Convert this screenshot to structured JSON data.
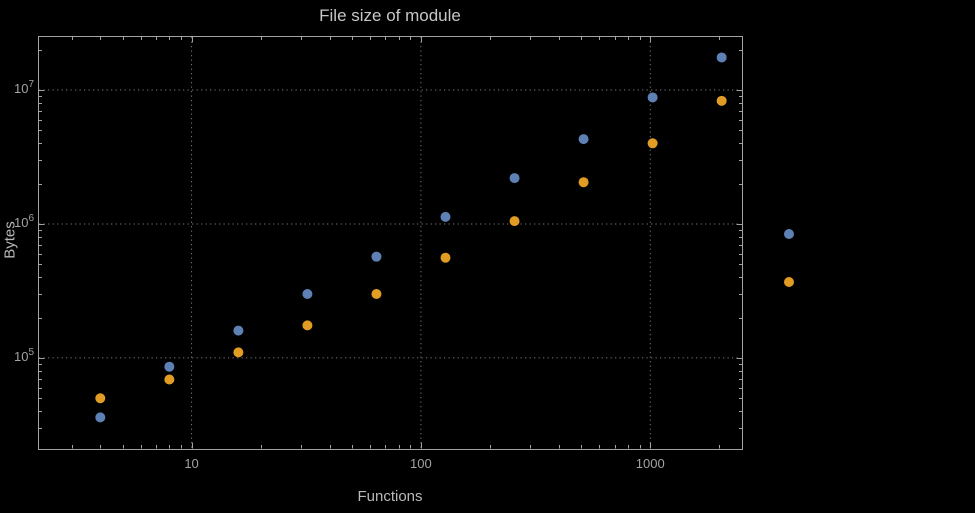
{
  "colors": {
    "background": "#000000",
    "frame": "#a2a2a2",
    "grid": "#767676",
    "tick_text": "#a2a2a2",
    "title_text": "#c6c6c6",
    "axis_label_text": "#b8b8b8",
    "series_1": "#5e81b5",
    "series_2": "#e19c24"
  },
  "chart_data": {
    "type": "scatter",
    "title": "File size of module",
    "xlabel": "Functions",
    "ylabel": "Bytes",
    "x_scale": "log",
    "y_scale": "log",
    "xlim": [
      2.14,
      2512
    ],
    "ylim": [
      20900,
      25300000
    ],
    "grid": true,
    "x_ticks": [
      {
        "value": 10,
        "label": "10"
      },
      {
        "value": 100,
        "label": "100"
      },
      {
        "value": 1000,
        "label": "1000"
      }
    ],
    "y_ticks": [
      {
        "value": 100000,
        "base": "10",
        "exponent": "5"
      },
      {
        "value": 1000000,
        "base": "10",
        "exponent": "6"
      },
      {
        "value": 10000000,
        "base": "10",
        "exponent": "7"
      }
    ],
    "x": [
      4,
      8,
      16,
      32,
      64,
      128,
      256,
      512,
      1024,
      2048
    ],
    "series": [
      {
        "name": "series-1",
        "color": "#5e81b5",
        "values": [
          36000,
          86000,
          160000,
          300000,
          570000,
          1130000,
          2200000,
          4300000,
          8800000,
          17500000
        ]
      },
      {
        "name": "series-2",
        "color": "#e19c24",
        "values": [
          50000,
          69000,
          110000,
          175000,
          300000,
          560000,
          1050000,
          2050000,
          4000000,
          8300000
        ]
      }
    ],
    "legend": {
      "position": "right-outside",
      "items": [
        {
          "series": "series-1",
          "label": "",
          "color": "#5e81b5"
        },
        {
          "series": "series-2",
          "label": "",
          "color": "#e19c24"
        }
      ]
    }
  }
}
